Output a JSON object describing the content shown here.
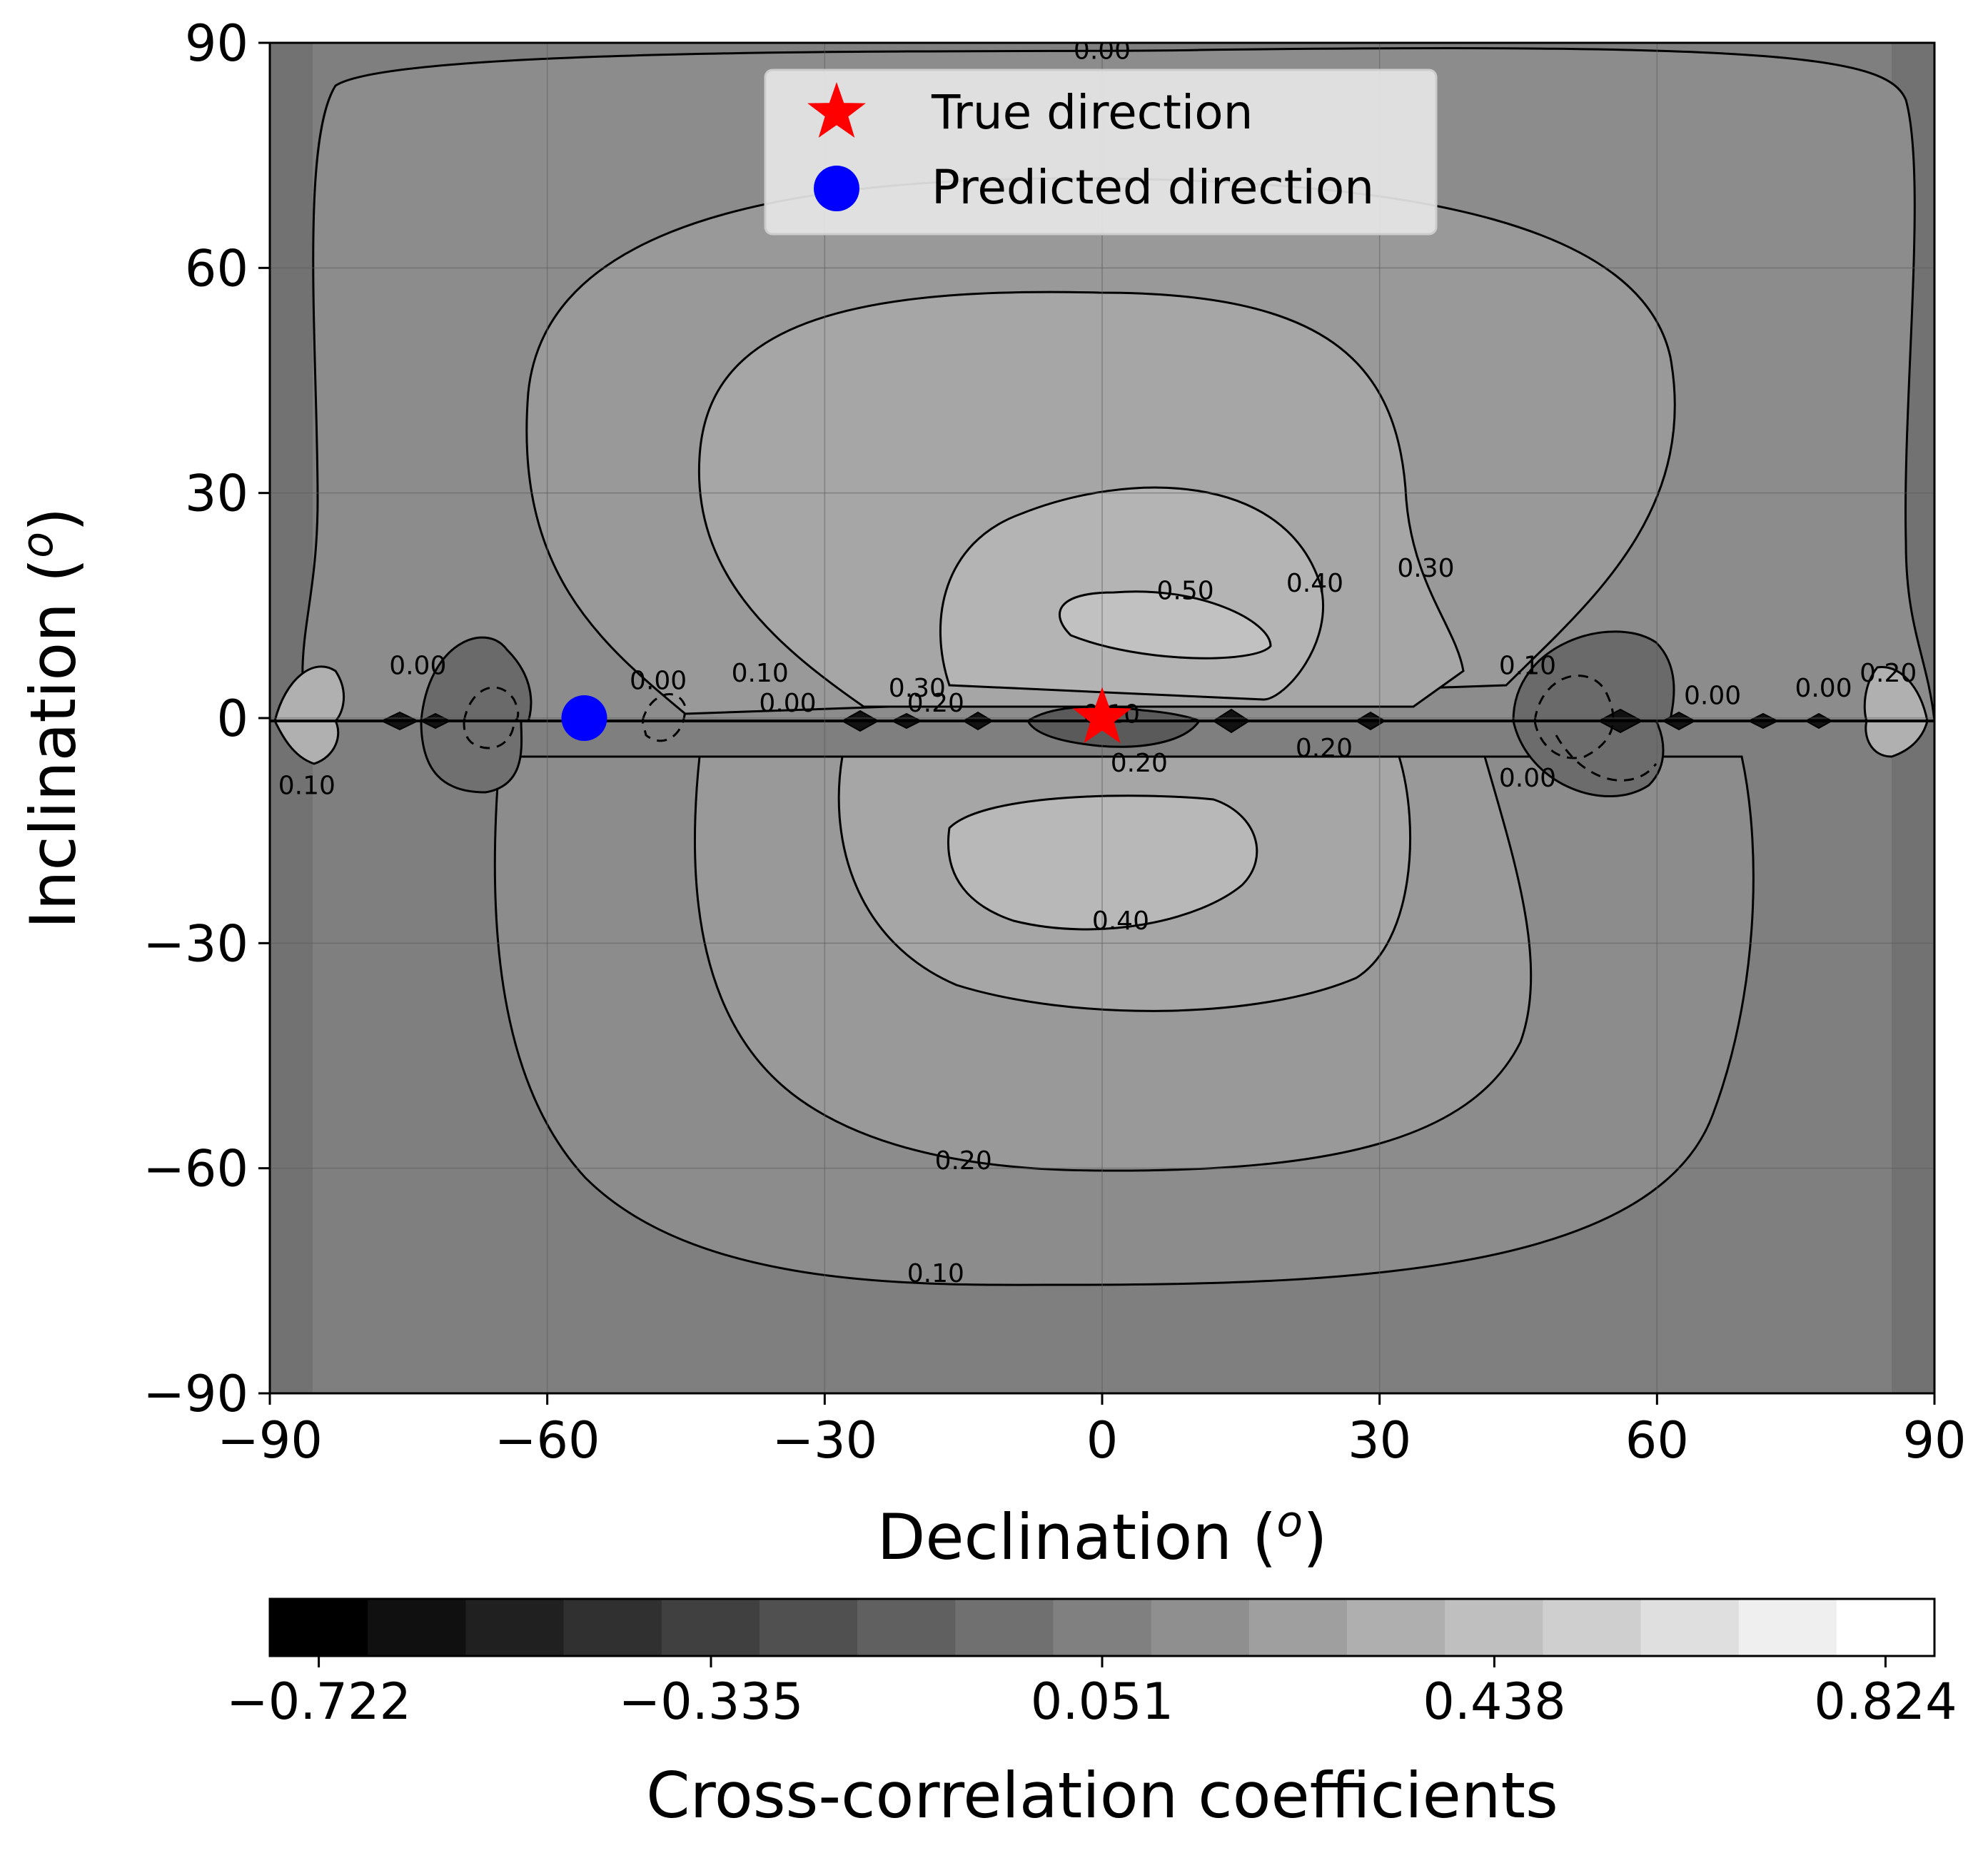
{
  "chart_data": {
    "type": "contour",
    "xlabel": "Declination (",
    "ylabel": "Inclination (",
    "unit_symbol": "o",
    "xlim": [
      -90,
      90
    ],
    "ylim": [
      -90,
      90
    ],
    "xticks": [
      -90,
      -60,
      -30,
      0,
      30,
      60,
      90
    ],
    "yticks": [
      -90,
      -60,
      -30,
      0,
      30,
      60,
      90
    ],
    "xtick_labels": [
      "−90",
      "−60",
      "−30",
      "0",
      "30",
      "60",
      "90"
    ],
    "ytick_labels": [
      "−90",
      "−60",
      "−30",
      "0",
      "30",
      "60",
      "90"
    ],
    "grid": true,
    "legend_position": "top-center",
    "legend": [
      {
        "label": "True direction",
        "marker": "star",
        "color": "#ff0000"
      },
      {
        "label": "Predicted direction",
        "marker": "circle",
        "color": "#0000ff"
      }
    ],
    "points": {
      "true_direction": {
        "x": 0,
        "y": 0
      },
      "predicted_direction": {
        "x": -56,
        "y": 0
      }
    },
    "contour_levels": [
      -0.722,
      -0.626,
      -0.529,
      -0.432,
      -0.335,
      -0.239,
      -0.142,
      -0.045,
      0.051,
      0.148,
      0.245,
      0.341,
      0.438,
      0.535,
      0.631,
      0.728,
      0.824
    ],
    "contour_labels": [
      {
        "text": "0.00",
        "x": 0,
        "y": 89
      },
      {
        "text": "0.50",
        "x": 9,
        "y": 17
      },
      {
        "text": "0.40",
        "x": 23,
        "y": 18
      },
      {
        "text": "0.30",
        "x": 35,
        "y": 20
      },
      {
        "text": "0.40",
        "x": 2,
        "y": -27
      },
      {
        "text": "0.20",
        "x": -15,
        "y": -59
      },
      {
        "text": "0.10",
        "x": -18,
        "y": -74
      },
      {
        "text": "0.00",
        "x": -74,
        "y": 7
      },
      {
        "text": "0.10",
        "x": -86,
        "y": -9
      },
      {
        "text": "0.00",
        "x": -48,
        "y": 5
      },
      {
        "text": "0.10",
        "x": -37,
        "y": 6
      },
      {
        "text": "0.00",
        "x": -34,
        "y": 2
      },
      {
        "text": "0.30",
        "x": -20,
        "y": 4
      },
      {
        "text": "0.20",
        "x": -18,
        "y": 2
      },
      {
        "text": "0.10",
        "x": 1,
        "y": 0.5
      },
      {
        "text": "0.20",
        "x": 4,
        "y": -6
      },
      {
        "text": "0.20",
        "x": 24,
        "y": -4
      },
      {
        "text": "0.10",
        "x": 46,
        "y": 7
      },
      {
        "text": "0.00",
        "x": 46,
        "y": -8
      },
      {
        "text": "0.20",
        "x": 85,
        "y": 6
      },
      {
        "text": "0.00",
        "x": 78,
        "y": 4
      },
      {
        "text": "0.00",
        "x": 66,
        "y": 3
      }
    ],
    "colorbar": {
      "label": "Cross-correlation coefficients",
      "min": -0.722,
      "max": 0.824,
      "ticks": [
        -0.722,
        -0.335,
        0.051,
        0.438,
        0.824
      ],
      "tick_labels": [
        "−0.722",
        "−0.335",
        "0.051",
        "0.438",
        "0.824"
      ],
      "bins": 17,
      "colormap": "gray"
    }
  }
}
